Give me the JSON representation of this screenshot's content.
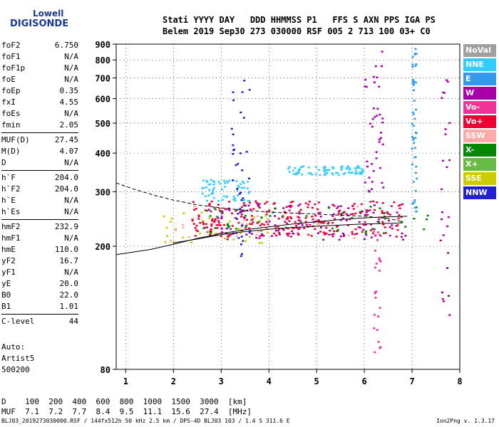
{
  "logo": {
    "line1": "Lowell",
    "line2": "DIGISONDE"
  },
  "header": {
    "line1": "Stati YYYY DAY   DDD HHMMSS P1   FFS S AXN PPS IGA PS",
    "line2": "Belem 2019 Sep30 273 030000 RSF 005 2 713 100 03+ C0"
  },
  "params": [
    {
      "k": "foF2",
      "v": "6.750"
    },
    {
      "k": "foF1",
      "v": "N/A"
    },
    {
      "k": "foF1p",
      "v": "N/A"
    },
    {
      "k": "foE",
      "v": "N/A"
    },
    {
      "k": "foEp",
      "v": "0.35"
    },
    {
      "k": "fxI",
      "v": "4.55"
    },
    {
      "k": "foEs",
      "v": "N/A"
    },
    {
      "k": "fmin",
      "v": "2.05"
    },
    {
      "k": "MUF(D)",
      "v": "27.45",
      "sep": true
    },
    {
      "k": "M(D)",
      "v": "4.07"
    },
    {
      "k": "D",
      "v": "N/A"
    },
    {
      "k": "h`F",
      "v": "204.0",
      "sep": true
    },
    {
      "k": "h`F2",
      "v": "204.0"
    },
    {
      "k": "h`E",
      "v": "N/A"
    },
    {
      "k": "h`Es",
      "v": "N/A"
    },
    {
      "k": "hmF2",
      "v": "232.9",
      "sep": true
    },
    {
      "k": "hmF1",
      "v": "N/A"
    },
    {
      "k": "hmE",
      "v": "110.0"
    },
    {
      "k": "yF2",
      "v": "16.7"
    },
    {
      "k": "yF1",
      "v": "N/A"
    },
    {
      "k": "yE",
      "v": "20.0"
    },
    {
      "k": "B0",
      "v": "22.0"
    },
    {
      "k": "B1",
      "v": "1.01"
    },
    {
      "k": "C-level",
      "v": "44",
      "sep": true
    }
  ],
  "auto": {
    "l1": "Auto:",
    "l2": "Artist5",
    "l3": "500200"
  },
  "legend": [
    {
      "label": "NoVal",
      "color": "#a0a0a0"
    },
    {
      "label": "NNE",
      "color": "#33ccff"
    },
    {
      "label": "E",
      "color": "#3399ee"
    },
    {
      "label": "W",
      "color": "#aa00aa"
    },
    {
      "label": "Vo-",
      "color": "#ee3399"
    },
    {
      "label": "Vo+",
      "color": "#ee0033"
    },
    {
      "label": "SSW",
      "color": "#ffaaaa"
    },
    {
      "label": "X-",
      "color": "#008800"
    },
    {
      "label": "X+",
      "color": "#66bb44"
    },
    {
      "label": "SSE",
      "color": "#cccc00"
    },
    {
      "label": "NNW",
      "color": "#2222cc"
    }
  ],
  "dtable": {
    "row1": "D    100  200  400  600  800  1000  1500  3000  [km]",
    "row2": "MUF  7.1  7.2  7.7  8.4  9.5  11.1  15.6  27.4  [MHz]"
  },
  "footer": "BLJ03_2019273030000.RSF / 144fx512h 50 kHz 2.5 km / DPS-4D BLJ03 103 / 1.4 S 311.6 E",
  "version": "Ion2Png v. 1.3.17",
  "chart_data": {
    "type": "scatter",
    "xlim": [
      0.8,
      8.0
    ],
    "ylim": [
      80,
      900
    ],
    "yscale": "log",
    "xticks": [
      1,
      2,
      3,
      4,
      5,
      6,
      7,
      8
    ],
    "yticks": [
      80,
      200,
      300,
      400,
      500,
      600,
      700,
      800,
      900
    ],
    "trace_solid": [
      [
        0.8,
        188
      ],
      [
        1.5,
        195
      ],
      [
        2.0,
        203
      ],
      [
        2.5,
        212
      ],
      [
        3.0,
        220
      ],
      [
        3.5,
        226
      ],
      [
        4.0,
        231
      ],
      [
        4.5,
        236
      ],
      [
        5.0,
        240
      ],
      [
        5.5,
        244
      ],
      [
        6.0,
        247
      ],
      [
        6.5,
        249
      ],
      [
        6.9,
        250
      ]
    ],
    "trace_solid2": [
      [
        2.0,
        205
      ],
      [
        2.5,
        211
      ],
      [
        3.0,
        218
      ],
      [
        3.5,
        223
      ],
      [
        4.0,
        227
      ],
      [
        4.5,
        230
      ],
      [
        5.0,
        232
      ],
      [
        5.5,
        234
      ],
      [
        6.0,
        236
      ],
      [
        6.5,
        237
      ],
      [
        6.8,
        238
      ]
    ],
    "trace_dashed": [
      [
        0.8,
        320
      ],
      [
        1.2,
        305
      ],
      [
        1.6,
        292
      ],
      [
        2.0,
        282
      ],
      [
        2.5,
        272
      ],
      [
        3.0,
        266
      ],
      [
        3.5,
        261
      ],
      [
        4.0,
        258
      ],
      [
        4.5,
        256
      ],
      [
        5.0,
        254
      ],
      [
        5.5,
        252
      ],
      [
        6.0,
        250
      ],
      [
        6.5,
        246
      ],
      [
        6.8,
        240
      ]
    ],
    "clusters": [
      {
        "color": "#ee0033",
        "x": [
          2.4,
          6.9
        ],
        "y": [
          215,
          280
        ],
        "n": 260
      },
      {
        "color": "#aa00aa",
        "x": [
          2.6,
          6.9
        ],
        "y": [
          210,
          275
        ],
        "n": 120
      },
      {
        "color": "#33ccff",
        "x": [
          2.6,
          3.6
        ],
        "y": [
          280,
          330
        ],
        "n": 60
      },
      {
        "color": "#33ccff",
        "x": [
          4.4,
          6.0
        ],
        "y": [
          340,
          365
        ],
        "n": 80
      },
      {
        "color": "#008800",
        "x": [
          2.6,
          7.4
        ],
        "y": [
          220,
          270
        ],
        "n": 50
      },
      {
        "color": "#cccc00",
        "x": [
          1.8,
          4.0
        ],
        "y": [
          205,
          260
        ],
        "n": 35
      },
      {
        "color": "#ffaaaa",
        "x": [
          1.6,
          6.8
        ],
        "y": [
          205,
          270
        ],
        "n": 30
      },
      {
        "color": "#2222cc",
        "x": [
          3.2,
          3.6
        ],
        "y": [
          180,
          700
        ],
        "n": 40
      },
      {
        "color": "#aa00aa",
        "x": [
          6.0,
          6.4
        ],
        "y": [
          300,
          880
        ],
        "n": 40
      },
      {
        "color": "#3399ee",
        "x": [
          7.0,
          7.1
        ],
        "y": [
          250,
          900
        ],
        "n": 50
      },
      {
        "color": "#aa00aa",
        "x": [
          7.6,
          7.8
        ],
        "y": [
          120,
          700
        ],
        "n": 25
      },
      {
        "color": "#ee3399",
        "x": [
          6.2,
          6.35
        ],
        "y": [
          90,
          240
        ],
        "n": 25
      }
    ]
  }
}
